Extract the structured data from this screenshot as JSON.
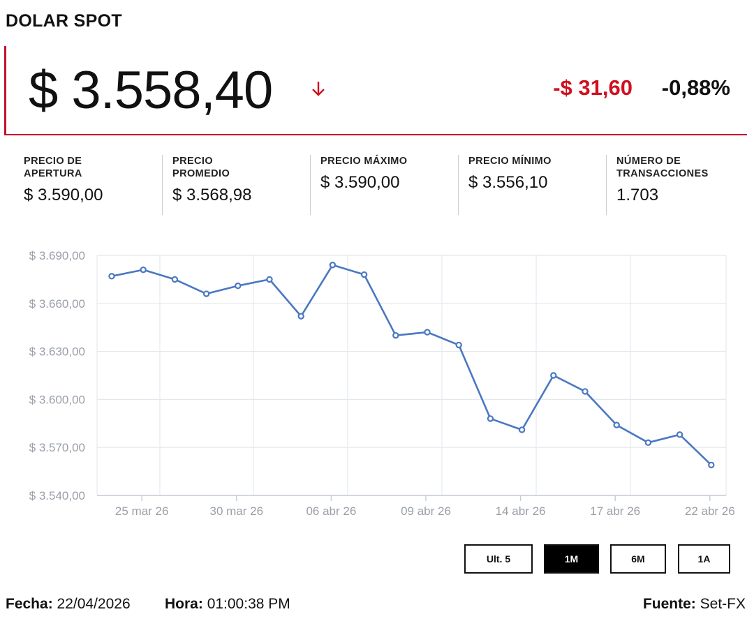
{
  "header": {
    "title": "DOLAR SPOT"
  },
  "quote": {
    "price": "$ 3.558,40",
    "change": "-$ 31,60",
    "change_pct": "-0,88%",
    "direction_icon": "arrow-down-icon"
  },
  "stats": [
    {
      "label": "PRECIO DE APERTURA",
      "value": "$ 3.590,00"
    },
    {
      "label": "PRECIO PROMEDIO",
      "value": "$ 3.568,98"
    },
    {
      "label": "PRECIO MÁXIMO",
      "value": "$ 3.590,00"
    },
    {
      "label": "PRECIO MÍNIMO",
      "value": "$ 3.556,10"
    },
    {
      "label": "NÚMERO DE TRANSACCIONES",
      "value": "1.703"
    }
  ],
  "chart_data": {
    "type": "line",
    "title": "",
    "xlabel": "",
    "ylabel": "",
    "ylim": [
      3540,
      3690
    ],
    "y_ticks": [
      3690,
      3660,
      3630,
      3600,
      3570,
      3540
    ],
    "y_tick_labels": [
      "$ 3.690,00",
      "$ 3.660,00",
      "$ 3.630,00",
      "$ 3.600,00",
      "$ 3.570,00",
      "$ 3.540,00"
    ],
    "x_tick_labels": [
      "25 mar 26",
      "30 mar 26",
      "06 abr 26",
      "09 abr 26",
      "14 abr 26",
      "17 abr 26",
      "22 abr 26"
    ],
    "x_tick_indices": [
      1,
      4,
      7,
      10,
      13,
      16,
      19
    ],
    "series": [
      {
        "name": "Dolar Spot",
        "color": "#4a78c2",
        "values": [
          3677,
          3681,
          3675,
          3666,
          3671,
          3675,
          3652,
          3684,
          3678,
          3640,
          3642,
          3634,
          3588,
          3581,
          3615,
          3605,
          3584,
          3573,
          3578,
          3559
        ]
      }
    ],
    "grid": true
  },
  "range_buttons": [
    {
      "label": "Ult. 5",
      "active": false
    },
    {
      "label": "1M",
      "active": true
    },
    {
      "label": "6M",
      "active": false
    },
    {
      "label": "1A",
      "active": false
    }
  ],
  "footer": {
    "date_label": "Fecha:",
    "date_value": "22/04/2026",
    "time_label": "Hora:",
    "time_value": "01:00:38 PM",
    "source_label": "Fuente:",
    "source_value": "Set-FX"
  },
  "colors": {
    "accent": "#c8102e",
    "negative": "#d0101e",
    "line": "#4a78c2"
  }
}
